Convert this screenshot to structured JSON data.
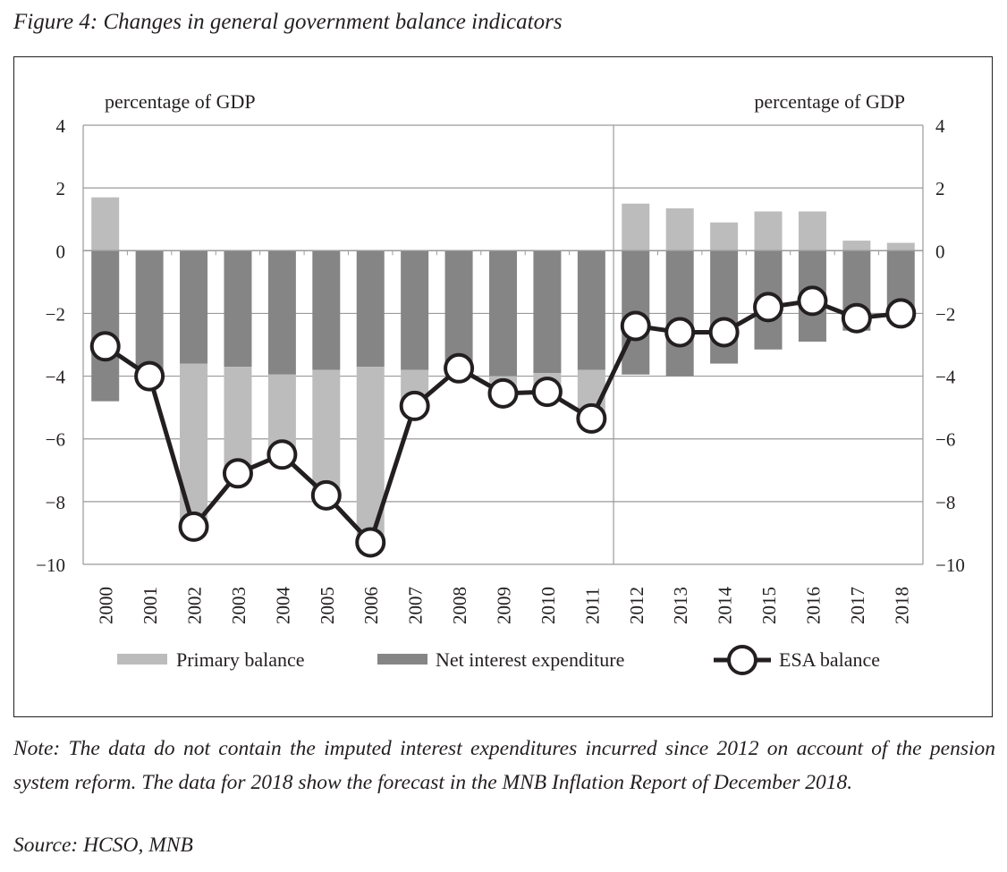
{
  "title": "Figure 4: Changes in general government balance indicators",
  "note": "Note: The data do not contain the imputed interest expenditures incurred since 2012 on account of the pension system reform. The data for 2018 show the forecast in the MNB Inflation Report of December 2018.",
  "source": "Source: HCSO, MNB",
  "chart_data": {
    "type": "bar",
    "subtype": "stacked bar with line overlay",
    "categories": [
      "2000",
      "2001",
      "2002",
      "2003",
      "2004",
      "2005",
      "2006",
      "2007",
      "2008",
      "2009",
      "2010",
      "2011",
      "2012",
      "2013",
      "2014",
      "2015",
      "2016",
      "2017",
      "2018"
    ],
    "left_axis_label": "percentage of GDP",
    "right_axis_label": "percentage of GDP",
    "ylim": [
      -10,
      4
    ],
    "yticks": [
      4,
      2,
      0,
      -2,
      -4,
      -6,
      -8,
      -10
    ],
    "ytick_labels": [
      "4",
      "2",
      "0",
      "−2",
      "−4",
      "−6",
      "−8",
      "−10"
    ],
    "grid": true,
    "separator_between": [
      "2011",
      "2012"
    ],
    "legend_position": "bottom",
    "series": [
      {
        "name": "Primary balance",
        "type": "bar",
        "color": "#bcbcbc",
        "values": [
          1.7,
          0.0,
          -5.2,
          -3.4,
          -2.55,
          -3.95,
          -5.6,
          -1.15,
          0.0,
          -0.55,
          -0.6,
          -1.6,
          1.5,
          1.35,
          0.9,
          1.25,
          1.25,
          0.32,
          0.25
        ]
      },
      {
        "name": "Net interest expenditure",
        "type": "bar",
        "color": "#858585",
        "values": [
          -4.8,
          -4.0,
          -3.6,
          -3.7,
          -3.95,
          -3.8,
          -3.7,
          -3.8,
          -3.75,
          -4.0,
          -3.9,
          -3.8,
          -3.95,
          -4.0,
          -3.6,
          -3.15,
          -2.9,
          -2.55,
          -2.25
        ]
      },
      {
        "name": "ESA balance",
        "type": "line",
        "color": "#231f20",
        "values": [
          -3.05,
          -4.0,
          -8.8,
          -7.1,
          -6.5,
          -7.8,
          -9.3,
          -4.95,
          -3.75,
          -4.55,
          -4.5,
          -5.35,
          -2.4,
          -2.6,
          -2.6,
          -1.8,
          -1.6,
          -2.15,
          -2.0
        ]
      }
    ]
  }
}
